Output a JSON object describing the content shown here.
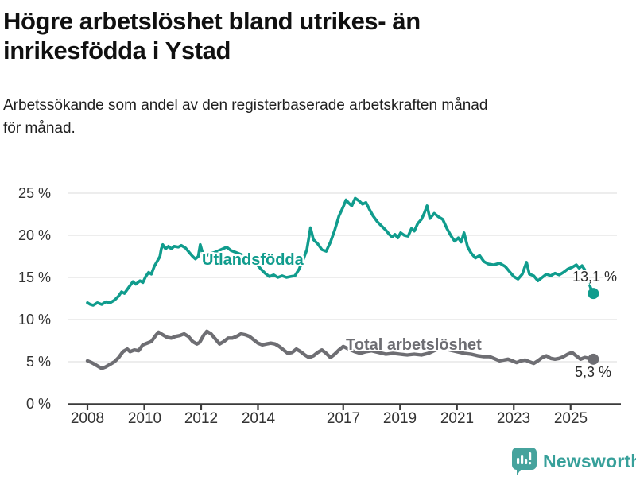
{
  "header": {
    "title_lines": [
      "Högre arbetslöshet bland utrikes- än",
      "inrikesfödda i Ystad"
    ],
    "subtitle_lines": [
      "Arbetssökande som andel av den registerbaserade arbetskraften månad",
      "för månad."
    ]
  },
  "chart_data": {
    "type": "line",
    "title": "Högre arbetslöshet bland utrikes- än inrikesfödda i Ystad",
    "subtitle": "Arbetssökande som andel av den registerbaserade arbetskraften månad för månad.",
    "ylabel": "",
    "xlabel": "",
    "ylim": [
      0,
      25
    ],
    "grid": "horizontal",
    "legend_position": "inline-labels",
    "ytick_labels": [
      "0 %",
      "5 %",
      "10 %",
      "15 %",
      "20 %",
      "25 %"
    ],
    "ytick_values": [
      0,
      5,
      10,
      15,
      20,
      25
    ],
    "xtick_labels": [
      "2008",
      "2010",
      "2012",
      "2014",
      "2017",
      "2019",
      "2021",
      "2023",
      "2025"
    ],
    "xtick_values": [
      2008,
      2010,
      2012,
      2014,
      2017,
      2019,
      2021,
      2023,
      2025
    ],
    "series": [
      {
        "name": "Utlandsfödda",
        "color": "#109c8d",
        "end_value": 13.1,
        "end_label": "13,1 %",
        "x": [
          2008.0,
          2008.1,
          2008.2,
          2008.35,
          2008.5,
          2008.65,
          2008.8,
          2008.95,
          2009.1,
          2009.2,
          2009.3,
          2009.45,
          2009.6,
          2009.7,
          2009.85,
          2009.95,
          2010.05,
          2010.15,
          2010.25,
          2010.35,
          2010.45,
          2010.55,
          2010.6,
          2010.65,
          2010.75,
          2010.85,
          2010.95,
          2011.05,
          2011.2,
          2011.3,
          2011.45,
          2011.6,
          2011.7,
          2011.8,
          2011.9,
          2011.97,
          2012.05,
          2012.15,
          2012.3,
          2012.5,
          2012.7,
          2012.9,
          2013.05,
          2013.2,
          2013.35,
          2013.5,
          2013.65,
          2013.8,
          2013.95,
          2014.1,
          2014.25,
          2014.4,
          2014.55,
          2014.7,
          2014.85,
          2015.0,
          2015.15,
          2015.3,
          2015.45,
          2015.6,
          2015.72,
          2015.85,
          2015.95,
          2016.1,
          2016.25,
          2016.4,
          2016.55,
          2016.7,
          2016.85,
          2017.0,
          2017.1,
          2017.2,
          2017.3,
          2017.42,
          2017.55,
          2017.68,
          2017.8,
          2017.92,
          2018.05,
          2018.2,
          2018.35,
          2018.5,
          2018.62,
          2018.72,
          2018.82,
          2018.92,
          2019.02,
          2019.15,
          2019.28,
          2019.4,
          2019.5,
          2019.62,
          2019.75,
          2019.85,
          2019.95,
          2020.05,
          2020.2,
          2020.35,
          2020.5,
          2020.65,
          2020.8,
          2020.92,
          2021.05,
          2021.15,
          2021.25,
          2021.38,
          2021.5,
          2021.65,
          2021.8,
          2021.95,
          2022.1,
          2022.3,
          2022.5,
          2022.7,
          2022.85,
          2023.0,
          2023.15,
          2023.3,
          2023.45,
          2023.55,
          2023.7,
          2023.85,
          2024.0,
          2024.15,
          2024.3,
          2024.45,
          2024.6,
          2024.75,
          2024.9,
          2025.05,
          2025.2,
          2025.3,
          2025.4,
          2025.5,
          2025.6,
          2025.7,
          2025.8
        ],
        "y": [
          12.0,
          11.8,
          11.7,
          12.0,
          11.8,
          12.1,
          12.0,
          12.3,
          12.8,
          13.3,
          13.1,
          13.8,
          14.5,
          14.2,
          14.6,
          14.4,
          15.1,
          15.6,
          15.4,
          16.3,
          16.9,
          17.5,
          18.4,
          18.9,
          18.4,
          18.7,
          18.4,
          18.7,
          18.6,
          18.8,
          18.5,
          17.9,
          17.5,
          17.2,
          17.5,
          18.9,
          17.9,
          17.5,
          17.8,
          18.0,
          18.3,
          18.6,
          18.2,
          18.0,
          17.8,
          17.6,
          17.4,
          17.1,
          16.6,
          16.0,
          15.5,
          15.1,
          15.3,
          15.0,
          15.2,
          15.0,
          15.1,
          15.2,
          16.0,
          17.2,
          18.3,
          20.9,
          19.5,
          19.0,
          18.3,
          18.1,
          19.2,
          20.6,
          22.3,
          23.4,
          24.2,
          23.8,
          23.5,
          24.4,
          24.1,
          23.7,
          23.9,
          23.1,
          22.3,
          21.6,
          21.1,
          20.6,
          20.1,
          19.8,
          20.1,
          19.7,
          20.3,
          20.0,
          19.9,
          20.8,
          20.5,
          21.4,
          21.9,
          22.6,
          23.5,
          22.0,
          22.6,
          22.2,
          21.9,
          20.8,
          19.9,
          19.3,
          19.7,
          19.2,
          20.3,
          18.6,
          17.9,
          17.3,
          17.6,
          16.9,
          16.6,
          16.5,
          16.7,
          16.3,
          15.7,
          15.1,
          14.8,
          15.4,
          16.8,
          15.4,
          15.2,
          14.6,
          15.0,
          15.4,
          15.2,
          15.5,
          15.3,
          15.6,
          16.0,
          16.2,
          16.5,
          16.1,
          16.4,
          15.9,
          14.8,
          13.8,
          13.1
        ]
      },
      {
        "name": "Total arbetslöshet",
        "color": "#6e6e73",
        "end_value": 5.3,
        "end_label": "5,3 %",
        "x": [
          2008.0,
          2008.15,
          2008.3,
          2008.5,
          2008.65,
          2008.8,
          2008.95,
          2009.1,
          2009.25,
          2009.4,
          2009.5,
          2009.65,
          2009.8,
          2009.95,
          2010.1,
          2010.25,
          2010.4,
          2010.5,
          2010.65,
          2010.8,
          2010.95,
          2011.1,
          2011.25,
          2011.4,
          2011.55,
          2011.7,
          2011.85,
          2011.95,
          2012.1,
          2012.2,
          2012.35,
          2012.5,
          2012.65,
          2012.8,
          2012.95,
          2013.1,
          2013.25,
          2013.4,
          2013.55,
          2013.7,
          2013.85,
          2014.0,
          2014.15,
          2014.3,
          2014.45,
          2014.6,
          2014.75,
          2014.9,
          2015.05,
          2015.2,
          2015.35,
          2015.5,
          2015.65,
          2015.8,
          2015.95,
          2016.1,
          2016.25,
          2016.4,
          2016.55,
          2016.7,
          2016.85,
          2017.0,
          2017.2,
          2017.4,
          2017.6,
          2017.8,
          2018.0,
          2018.25,
          2018.5,
          2018.75,
          2019.0,
          2019.25,
          2019.5,
          2019.75,
          2020.0,
          2020.25,
          2020.5,
          2020.75,
          2021.0,
          2021.25,
          2021.5,
          2021.75,
          2021.95,
          2022.15,
          2022.3,
          2022.5,
          2022.65,
          2022.8,
          2022.95,
          2023.1,
          2023.25,
          2023.4,
          2023.55,
          2023.7,
          2023.85,
          2024.0,
          2024.15,
          2024.3,
          2024.45,
          2024.6,
          2024.75,
          2024.9,
          2025.05,
          2025.2,
          2025.35,
          2025.5,
          2025.65,
          2025.8
        ],
        "y": [
          5.1,
          4.9,
          4.6,
          4.2,
          4.4,
          4.7,
          5.0,
          5.5,
          6.2,
          6.5,
          6.2,
          6.4,
          6.3,
          7.0,
          7.2,
          7.4,
          8.1,
          8.5,
          8.2,
          7.9,
          7.8,
          8.0,
          8.1,
          8.3,
          8.0,
          7.4,
          7.1,
          7.3,
          8.2,
          8.6,
          8.3,
          7.7,
          7.1,
          7.4,
          7.8,
          7.8,
          8.0,
          8.3,
          8.2,
          8.0,
          7.6,
          7.2,
          7.0,
          7.1,
          7.2,
          7.1,
          6.8,
          6.4,
          6.0,
          6.1,
          6.5,
          6.2,
          5.8,
          5.5,
          5.7,
          6.1,
          6.4,
          6.0,
          5.5,
          5.9,
          6.4,
          6.8,
          6.5,
          6.2,
          6.0,
          6.2,
          6.3,
          6.1,
          5.9,
          6.0,
          5.9,
          5.8,
          5.9,
          5.8,
          6.0,
          6.4,
          6.6,
          6.4,
          6.2,
          6.0,
          5.9,
          5.7,
          5.6,
          5.6,
          5.4,
          5.1,
          5.2,
          5.3,
          5.1,
          4.9,
          5.1,
          5.2,
          5.0,
          4.8,
          5.1,
          5.5,
          5.7,
          5.4,
          5.3,
          5.4,
          5.6,
          5.9,
          6.1,
          5.7,
          5.3,
          5.5,
          5.4,
          5.3
        ]
      }
    ]
  },
  "footer": {
    "brand": "Newsworthy",
    "brand_text_color": "#37a09a",
    "brand_icon_color": "#46a39d"
  }
}
